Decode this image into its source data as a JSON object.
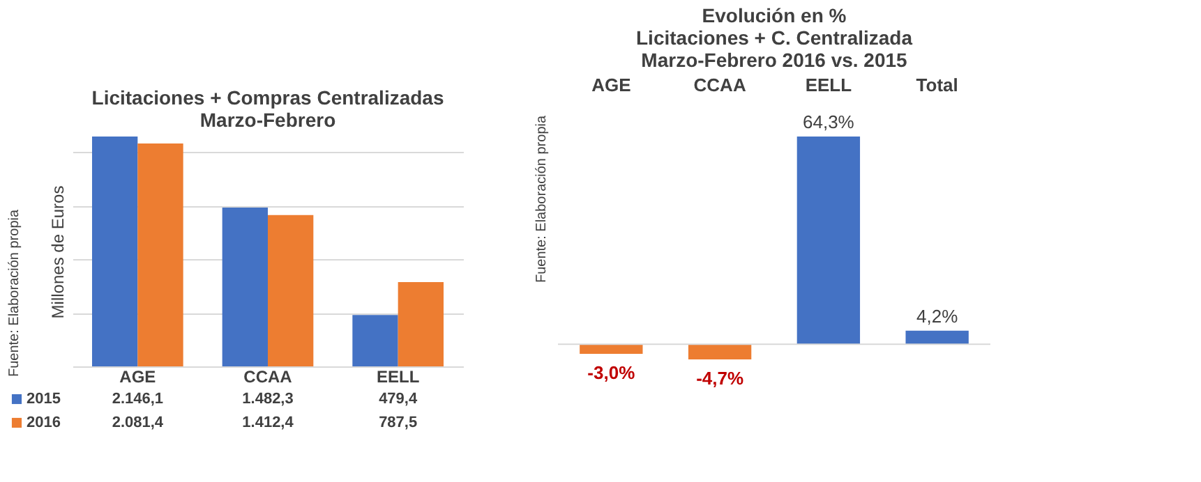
{
  "chart_data": [
    {
      "type": "bar",
      "title": "Licitaciones + Compras Centralizadas\nMarzo-Febrero",
      "ylabel": "Millones de Euros",
      "categories": [
        "AGE",
        "CCAA",
        "EELL"
      ],
      "series": [
        {
          "name": "2015",
          "color": "#4472c4",
          "values": [
            2146.1,
            1482.3,
            479.4
          ],
          "value_labels": [
            "2.146,1",
            "1.482,3",
            "479,4"
          ]
        },
        {
          "name": "2016",
          "color": "#ed7d31",
          "values": [
            2081.4,
            1412.4,
            787.5
          ],
          "value_labels": [
            "2.081,4",
            "1.412,4",
            "787,5"
          ]
        }
      ],
      "yticks": [
        {
          "value": 0,
          "label": null
        },
        {
          "value": 500,
          "label": null
        },
        {
          "value": 1000,
          "label": null
        },
        {
          "value": 1500,
          "label": null
        },
        {
          "value": 2000,
          "label": null
        }
      ],
      "grid": "y",
      "tick_labels": "x",
      "legend": "bottom left",
      "annotations": [
        "Fuente: Elaboración propia"
      ]
    },
    {
      "type": "bar",
      "title": "Evolución en %\nLicitaciones + C. Centralizada\nMarzo-Febrero 2016 vs. 2015",
      "categories": [
        "AGE",
        "CCAA",
        "EELL",
        "Total"
      ],
      "values": [
        -3.0,
        -4.7,
        64.3,
        4.2
      ],
      "colors": [
        "#ed7d31",
        "#ed7d31",
        "#4472c4",
        "#4472c4"
      ],
      "value_labels": [
        "-3,0%",
        "-4,7%",
        "64,3%",
        "4,2%"
      ],
      "ref_lines": [
        {
          "axis": "y",
          "value": 0
        }
      ],
      "tick_labels": "x",
      "annotations": [
        "Fuente: Elaboración propia"
      ]
    }
  ]
}
